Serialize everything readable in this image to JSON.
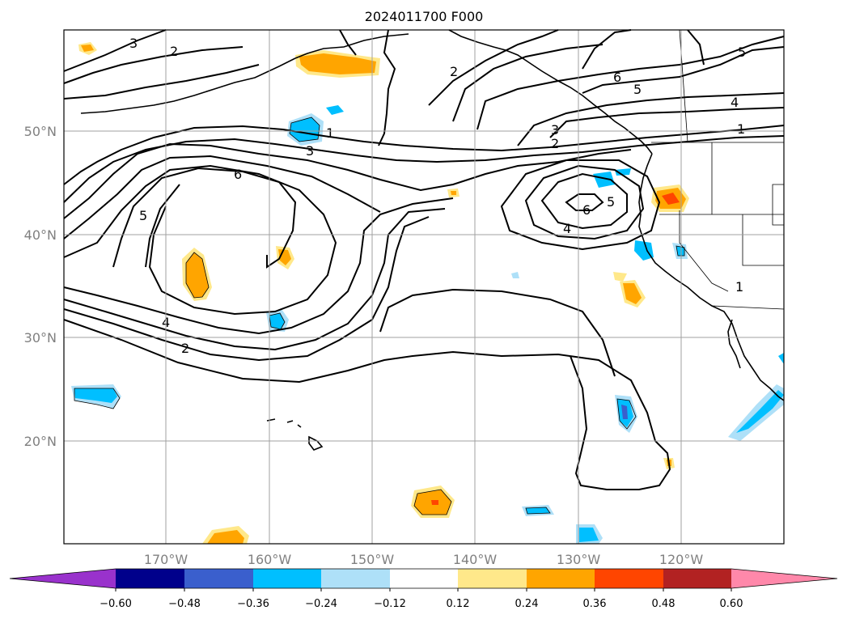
{
  "title": "2024011700 F000",
  "lon_labels": [
    "170°W",
    "160°W",
    "150°W",
    "140°W",
    "130°W",
    "120°W"
  ],
  "lat_labels": [
    "50°N",
    "40°N",
    "30°N",
    "20°N"
  ],
  "contour_labels": [
    "3",
    "2",
    "1",
    "3",
    "6",
    "5",
    "4",
    "2",
    "2",
    "3",
    "2",
    "6",
    "5",
    "4",
    "1",
    "5",
    "6",
    "4",
    "1",
    "5"
  ],
  "colorbar": {
    "ticks": [
      "−0.60",
      "−0.48",
      "−0.36",
      "−0.24",
      "−0.12",
      "0.12",
      "0.24",
      "0.36",
      "0.48",
      "0.60"
    ],
    "colors": [
      "#9932cc",
      "#00008b",
      "#3a5fcd",
      "#00bfff",
      "#aee0f8",
      "#ffffff",
      "#ffe88a",
      "#ffa500",
      "#ff4500",
      "#b22222",
      "#ff88aa"
    ]
  }
}
